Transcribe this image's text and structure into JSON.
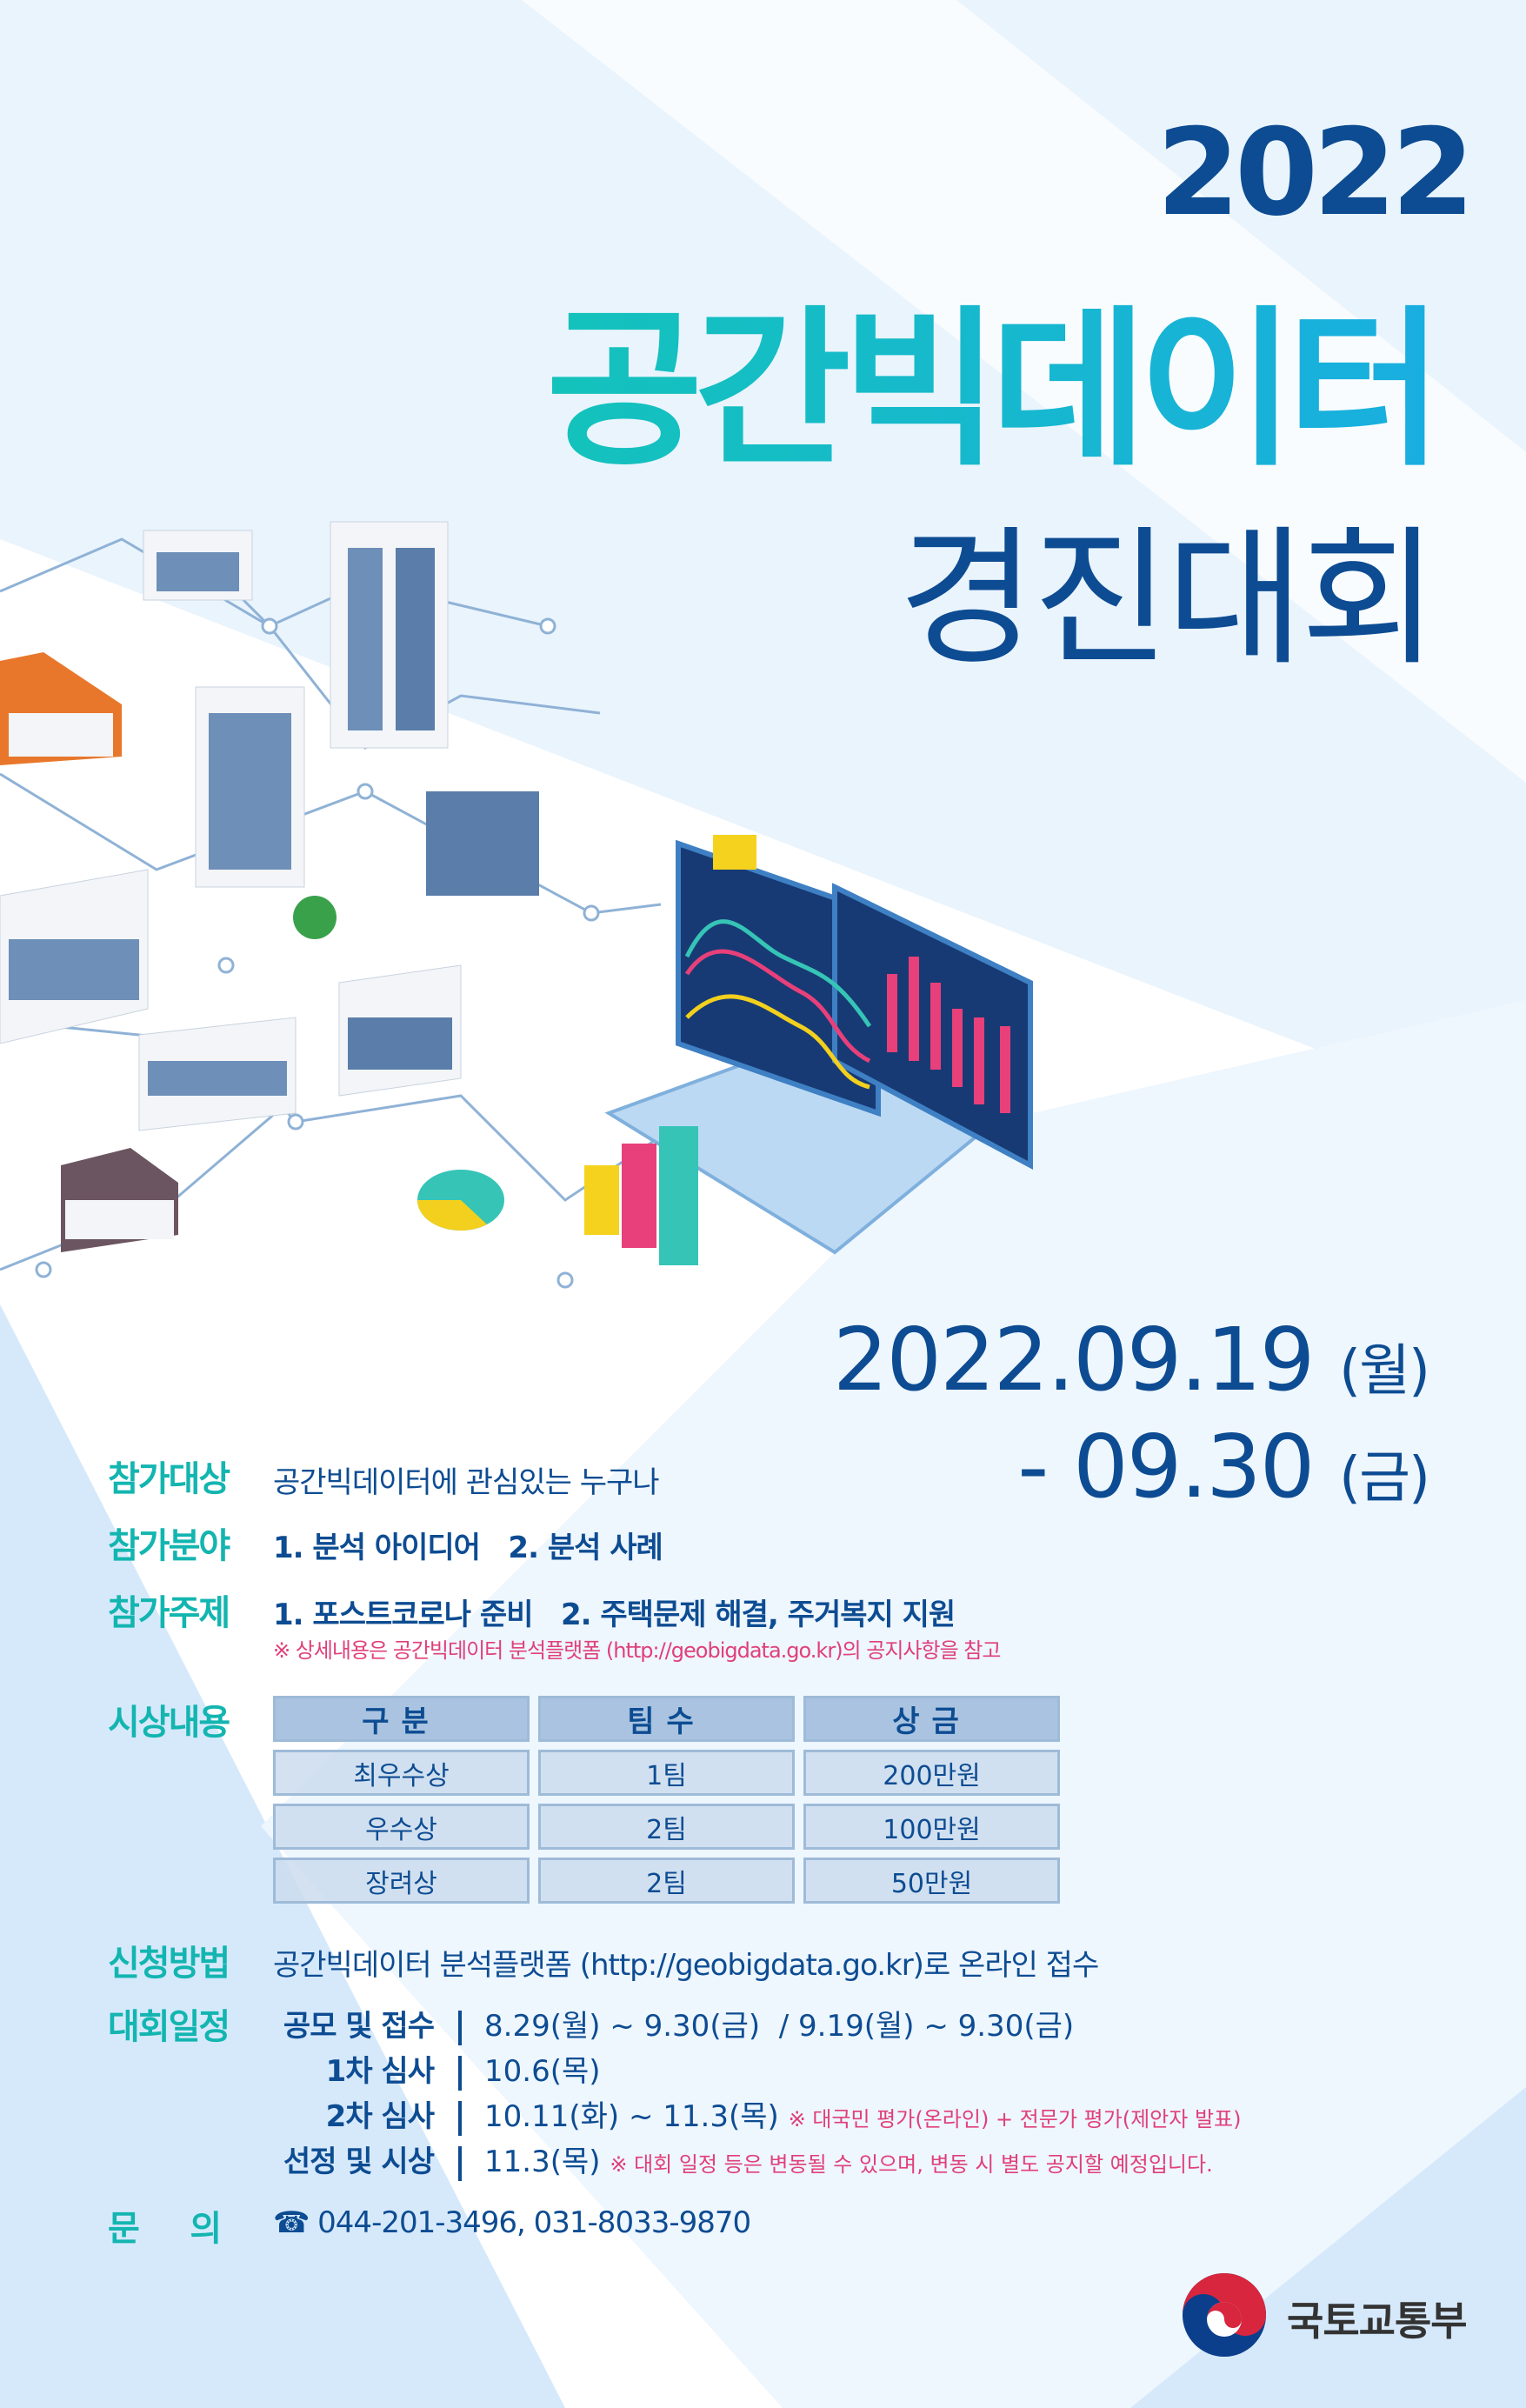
{
  "title": {
    "year": "2022",
    "main": "공간빅데이터",
    "sub": "경진대회"
  },
  "period": {
    "start": "2022.09.19",
    "start_day": "(월)",
    "end": "- 09.30",
    "end_day": "(금)"
  },
  "info": {
    "target": {
      "label": "참가대상",
      "text": "공간빅데이터에 관심있는 누구나"
    },
    "field": {
      "label": "참가분야",
      "text": "1. 분석 아이디어   2. 분석 사례"
    },
    "theme": {
      "label": "참가주제",
      "text": "1. 포스트코로나 준비   2. 주택문제 해결, 주거복지 지원",
      "note": "※ 상세내용은 공간빅데이터 분석플랫폼 (http://geobigdata.go.kr)의 공지사항을 참고"
    },
    "awards": {
      "label": "시상내용",
      "headers": [
        "구분",
        "팀수",
        "상금"
      ],
      "rows": [
        [
          "최우수상",
          "1팀",
          "200만원"
        ],
        [
          "우수상",
          "2팀",
          "100만원"
        ],
        [
          "장려상",
          "2팀",
          "50만원"
        ]
      ]
    },
    "apply": {
      "label": "신청방법",
      "text": "공간빅데이터 분석플랫폼 (http://geobigdata.go.kr)로 온라인 접수"
    },
    "schedule": {
      "label": "대회일정",
      "rows": [
        {
          "key": "공모 및 접수",
          "value": "8.29(월) ~ 9.30(금)  / 9.19(월) ~ 9.30(금)",
          "note": ""
        },
        {
          "key": "1차 심사",
          "value": "10.6(목)",
          "note": ""
        },
        {
          "key": "2차 심사",
          "value": "10.11(화) ~ 11.3(목)",
          "note": "※ 대국민 평가(온라인) + 전문가 평가(제안자 발표)"
        },
        {
          "key": "선정 및 시상",
          "value": "11.3(목)",
          "note": "※ 대회 일정 등은 변동될 수 있으며, 변동 시 별도 공지할 예정입니다."
        }
      ]
    },
    "contact": {
      "label": "문     의",
      "icon": "phone-icon",
      "text": "044-201-3496, 031-8033-9870"
    }
  },
  "footer": {
    "ministry": "국토교통부"
  },
  "colors": {
    "navy": "#0d4c92",
    "teal": "#13b5b0",
    "pink": "#e0407a",
    "table": "#a9c3e0"
  }
}
